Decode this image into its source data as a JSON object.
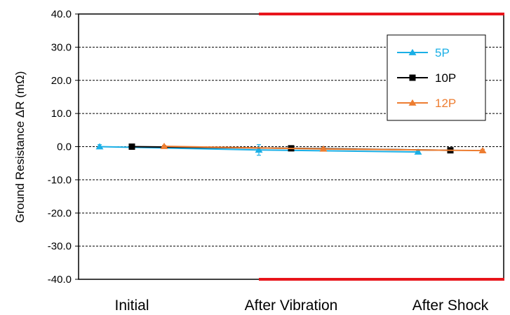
{
  "chart_data": {
    "type": "line",
    "title": "",
    "xlabel": "",
    "ylabel": "Ground Resistance ΔR (mΩ)",
    "categories": [
      "Initial",
      "After Vibration",
      "After Shock"
    ],
    "ylim": [
      -40,
      40
    ],
    "yticks": [
      "40.0",
      "30.0",
      "20.0",
      "10.0",
      "0.0",
      "-10.0",
      "-20.0",
      "-30.0",
      "-40.0"
    ],
    "grid": "horizontal dashed",
    "legend_position": "top-right",
    "series": [
      {
        "name": "5P",
        "color": "#1AAFE6",
        "marker": "triangle",
        "offset": -1,
        "values": [
          0.0,
          -1.0,
          -1.6
        ],
        "error": [
          0.6,
          1.6,
          0.4
        ]
      },
      {
        "name": "10P",
        "color": "#000000",
        "marker": "square",
        "offset": 0,
        "values": [
          0.0,
          -0.5,
          -1.1
        ],
        "error": [
          0.3,
          0.4,
          0.4
        ]
      },
      {
        "name": "12P",
        "color": "#ED7D31",
        "marker": "triangle",
        "offset": 1,
        "values": [
          0.1,
          -0.7,
          -1.2
        ],
        "error": [
          0.3,
          0.4,
          0.4
        ]
      }
    ],
    "limit_lines": {
      "upper": 40,
      "lower": -40,
      "color": "#E8151B",
      "from_category": "After Vibration"
    }
  }
}
